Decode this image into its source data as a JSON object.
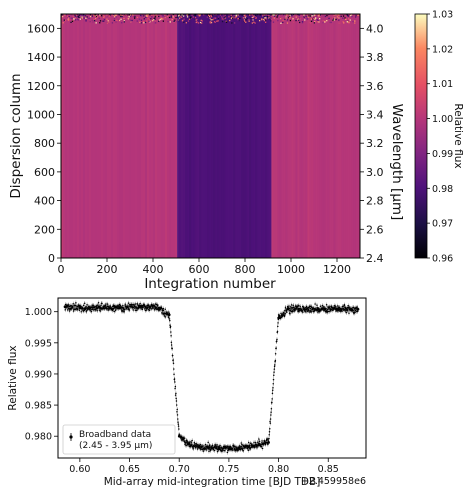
{
  "chart_data": [
    {
      "type": "heatmap",
      "xlabel": "Integration number",
      "ylabel": "Dispersion column",
      "y2label": "Wavelength [μm]",
      "colorbar_label": "Relative flux",
      "colormap": "magma",
      "xlim": [
        0,
        1300
      ],
      "ylim": [
        0,
        1700
      ],
      "y2lim": [
        2.4,
        4.1
      ],
      "clim": [
        0.96,
        1.03
      ],
      "x_ticks": [
        "0",
        "200",
        "400",
        "600",
        "800",
        "1000",
        "1200"
      ],
      "y_ticks": [
        "0",
        "200",
        "400",
        "600",
        "800",
        "1000",
        "1200",
        "1400",
        "1600"
      ],
      "y2_ticks": [
        "2.4",
        "2.6",
        "2.8",
        "3.0",
        "3.2",
        "3.4",
        "3.6",
        "3.8",
        "4.0"
      ],
      "colorbar_ticks": [
        "0.96",
        "0.97",
        "0.98",
        "0.99",
        "1.00",
        "1.01",
        "1.02",
        "1.03"
      ],
      "regions": [
        {
          "x_range": [
            0,
            505
          ],
          "relative_flux": 1.0
        },
        {
          "x_range": [
            505,
            915
          ],
          "relative_flux": 0.98
        },
        {
          "x_range": [
            915,
            1300
          ],
          "relative_flux": 1.0
        }
      ],
      "noisy_rows_above_dispersion_column": 1640
    },
    {
      "type": "scatter",
      "xlabel": "Mid-array mid-integration time [BJD TDB]",
      "ylabel": "Relative flux",
      "x_offset_label": "+2.459958e6",
      "xlim": [
        0.578,
        0.888
      ],
      "ylim": [
        0.9765,
        1.0022
      ],
      "x_ticks": [
        "0.60",
        "0.65",
        "0.70",
        "0.75",
        "0.80",
        "0.85"
      ],
      "y_ticks": [
        "0.980",
        "0.985",
        "0.990",
        "0.995",
        "1.000"
      ],
      "legend_location": "lower-left",
      "series": [
        {
          "name": "Broadband data\n(2.45 - 3.95 μm)",
          "marker_color": "#000000",
          "x": [
            0.585,
            0.6,
            0.62,
            0.64,
            0.66,
            0.68,
            0.69,
            0.7,
            0.71,
            0.72,
            0.73,
            0.74,
            0.75,
            0.76,
            0.77,
            0.78,
            0.79,
            0.8,
            0.81,
            0.82,
            0.84,
            0.86,
            0.88
          ],
          "y": [
            1.0008,
            1.0006,
            1.0007,
            1.0006,
            1.0008,
            1.0006,
            0.9995,
            0.98,
            0.9787,
            0.9783,
            0.9782,
            0.978,
            0.978,
            0.9781,
            0.9783,
            0.9787,
            0.979,
            0.999,
            1.0005,
            1.0004,
            1.0005,
            1.0004,
            1.0004
          ]
        }
      ]
    }
  ]
}
